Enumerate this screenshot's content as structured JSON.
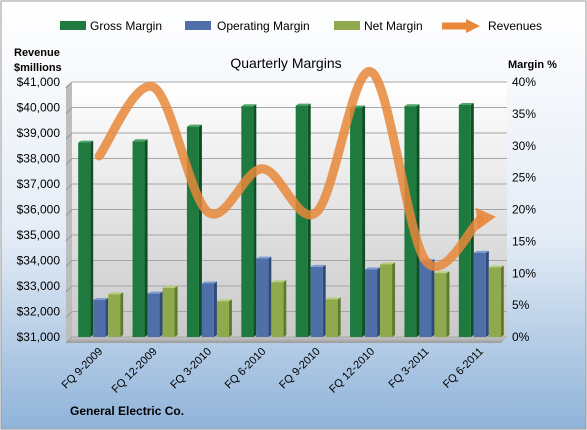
{
  "chart_data": {
    "type": "bar",
    "title": "Quarterly Margins",
    "company": "General Electric Co.",
    "left_axis_label_line1": "Revenue",
    "left_axis_label_line2": "$millions",
    "right_axis_label": "Margin %",
    "categories": [
      "FQ 9-2009",
      "FQ 12-2009",
      "FQ 3-2010",
      "FQ 6-2010",
      "FQ 9-2010",
      "FQ 12-2010",
      "FQ 3-2011",
      "FQ 6-2011"
    ],
    "series": [
      {
        "name": "Gross Margin",
        "axis": "right",
        "kind": "bar",
        "color": "#1E7A3E",
        "values": [
          30.5,
          30.7,
          33.0,
          36.2,
          36.3,
          36.0,
          36.2,
          36.4
        ]
      },
      {
        "name": "Operating Margin",
        "axis": "right",
        "kind": "bar",
        "color": "#4F6FA8",
        "values": [
          5.8,
          6.8,
          8.4,
          12.3,
          11.0,
          10.6,
          11.9,
          13.2
        ]
      },
      {
        "name": "Net Margin",
        "axis": "right",
        "kind": "bar",
        "color": "#8EAA4C",
        "values": [
          6.7,
          7.7,
          5.6,
          8.6,
          5.9,
          11.4,
          10.0,
          10.9
        ]
      },
      {
        "name": "Revenues",
        "axis": "left",
        "kind": "line",
        "color": "#E8873A",
        "values": [
          38100,
          40800,
          35900,
          37600,
          35900,
          41400,
          34000,
          35600
        ]
      }
    ],
    "left_axis": {
      "min": 31000,
      "max": 41000,
      "step": 1000,
      "ticks": [
        "$31,000",
        "$32,000",
        "$33,000",
        "$34,000",
        "$35,000",
        "$36,000",
        "$37,000",
        "$38,000",
        "$39,000",
        "$40,000",
        "$41,000"
      ]
    },
    "right_axis": {
      "min": 0,
      "max": 40,
      "step": 5,
      "ticks": [
        "0%",
        "5%",
        "10%",
        "15%",
        "20%",
        "25%",
        "30%",
        "35%",
        "40%"
      ]
    },
    "legend_position": "top",
    "grid": true
  }
}
